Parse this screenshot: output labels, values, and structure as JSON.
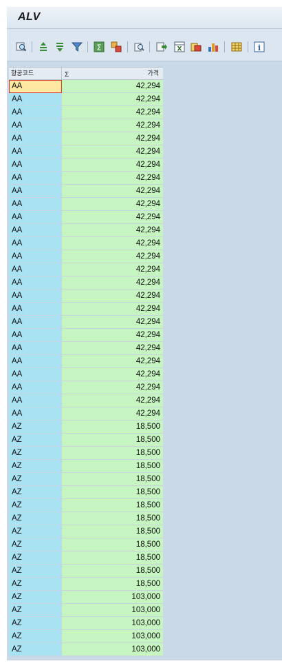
{
  "window": {
    "title": "ALV"
  },
  "toolbar": {
    "icons": [
      "details-icon",
      "sort-ascending-icon",
      "sort-descending-icon",
      "filter-icon",
      "sum-icon",
      "subtotal-icon",
      "print-preview-icon",
      "export-icon",
      "excel-icon",
      "word-processing-icon",
      "graphic-icon",
      "layout-icon",
      "information-icon"
    ]
  },
  "grid": {
    "columns": [
      {
        "label": "항공코드",
        "sigma": ""
      },
      {
        "label": "가격",
        "sigma": "Σ"
      }
    ],
    "rows": [
      {
        "code": "AA",
        "price": "42,294"
      },
      {
        "code": "AA",
        "price": "42,294"
      },
      {
        "code": "AA",
        "price": "42,294"
      },
      {
        "code": "AA",
        "price": "42,294"
      },
      {
        "code": "AA",
        "price": "42,294"
      },
      {
        "code": "AA",
        "price": "42,294"
      },
      {
        "code": "AA",
        "price": "42,294"
      },
      {
        "code": "AA",
        "price": "42,294"
      },
      {
        "code": "AA",
        "price": "42,294"
      },
      {
        "code": "AA",
        "price": "42,294"
      },
      {
        "code": "AA",
        "price": "42,294"
      },
      {
        "code": "AA",
        "price": "42,294"
      },
      {
        "code": "AA",
        "price": "42,294"
      },
      {
        "code": "AA",
        "price": "42,294"
      },
      {
        "code": "AA",
        "price": "42,294"
      },
      {
        "code": "AA",
        "price": "42,294"
      },
      {
        "code": "AA",
        "price": "42,294"
      },
      {
        "code": "AA",
        "price": "42,294"
      },
      {
        "code": "AA",
        "price": "42,294"
      },
      {
        "code": "AA",
        "price": "42,294"
      },
      {
        "code": "AA",
        "price": "42,294"
      },
      {
        "code": "AA",
        "price": "42,294"
      },
      {
        "code": "AA",
        "price": "42,294"
      },
      {
        "code": "AA",
        "price": "42,294"
      },
      {
        "code": "AA",
        "price": "42,294"
      },
      {
        "code": "AA",
        "price": "42,294"
      },
      {
        "code": "AZ",
        "price": "18,500"
      },
      {
        "code": "AZ",
        "price": "18,500"
      },
      {
        "code": "AZ",
        "price": "18,500"
      },
      {
        "code": "AZ",
        "price": "18,500"
      },
      {
        "code": "AZ",
        "price": "18,500"
      },
      {
        "code": "AZ",
        "price": "18,500"
      },
      {
        "code": "AZ",
        "price": "18,500"
      },
      {
        "code": "AZ",
        "price": "18,500"
      },
      {
        "code": "AZ",
        "price": "18,500"
      },
      {
        "code": "AZ",
        "price": "18,500"
      },
      {
        "code": "AZ",
        "price": "18,500"
      },
      {
        "code": "AZ",
        "price": "18,500"
      },
      {
        "code": "AZ",
        "price": "18,500"
      },
      {
        "code": "AZ",
        "price": "103,000"
      },
      {
        "code": "AZ",
        "price": "103,000"
      },
      {
        "code": "AZ",
        "price": "103,000"
      },
      {
        "code": "AZ",
        "price": "103,000"
      },
      {
        "code": "AZ",
        "price": "103,000"
      }
    ]
  }
}
